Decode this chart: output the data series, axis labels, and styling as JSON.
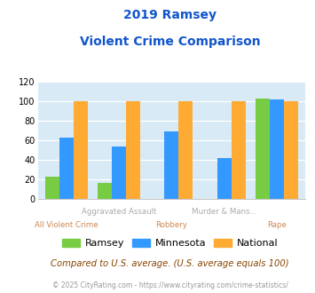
{
  "title_line1": "2019 Ramsey",
  "title_line2": "Violent Crime Comparison",
  "categories": [
    "All Violent Crime",
    "Aggravated Assault",
    "Robbery",
    "Murder & Mans...",
    "Rape"
  ],
  "ramsey": [
    23,
    17,
    0,
    0,
    103
  ],
  "minnesota": [
    63,
    54,
    69,
    42,
    102
  ],
  "national": [
    100,
    100,
    100,
    100,
    100
  ],
  "ramsey_color": "#77cc44",
  "minnesota_color": "#3399ff",
  "national_color": "#ffaa33",
  "ylim": [
    0,
    120
  ],
  "yticks": [
    0,
    20,
    40,
    60,
    80,
    100,
    120
  ],
  "plot_bg": "#d8eaf5",
  "title_color": "#1155cc",
  "footer_color": "#884400",
  "credit_color": "#999999",
  "top_label_color": "#aaaaaa",
  "bottom_label_color": "#cc8855",
  "footer_text": "Compared to U.S. average. (U.S. average equals 100)",
  "credit_text": "© 2025 CityRating.com - https://www.cityrating.com/crime-statistics/"
}
